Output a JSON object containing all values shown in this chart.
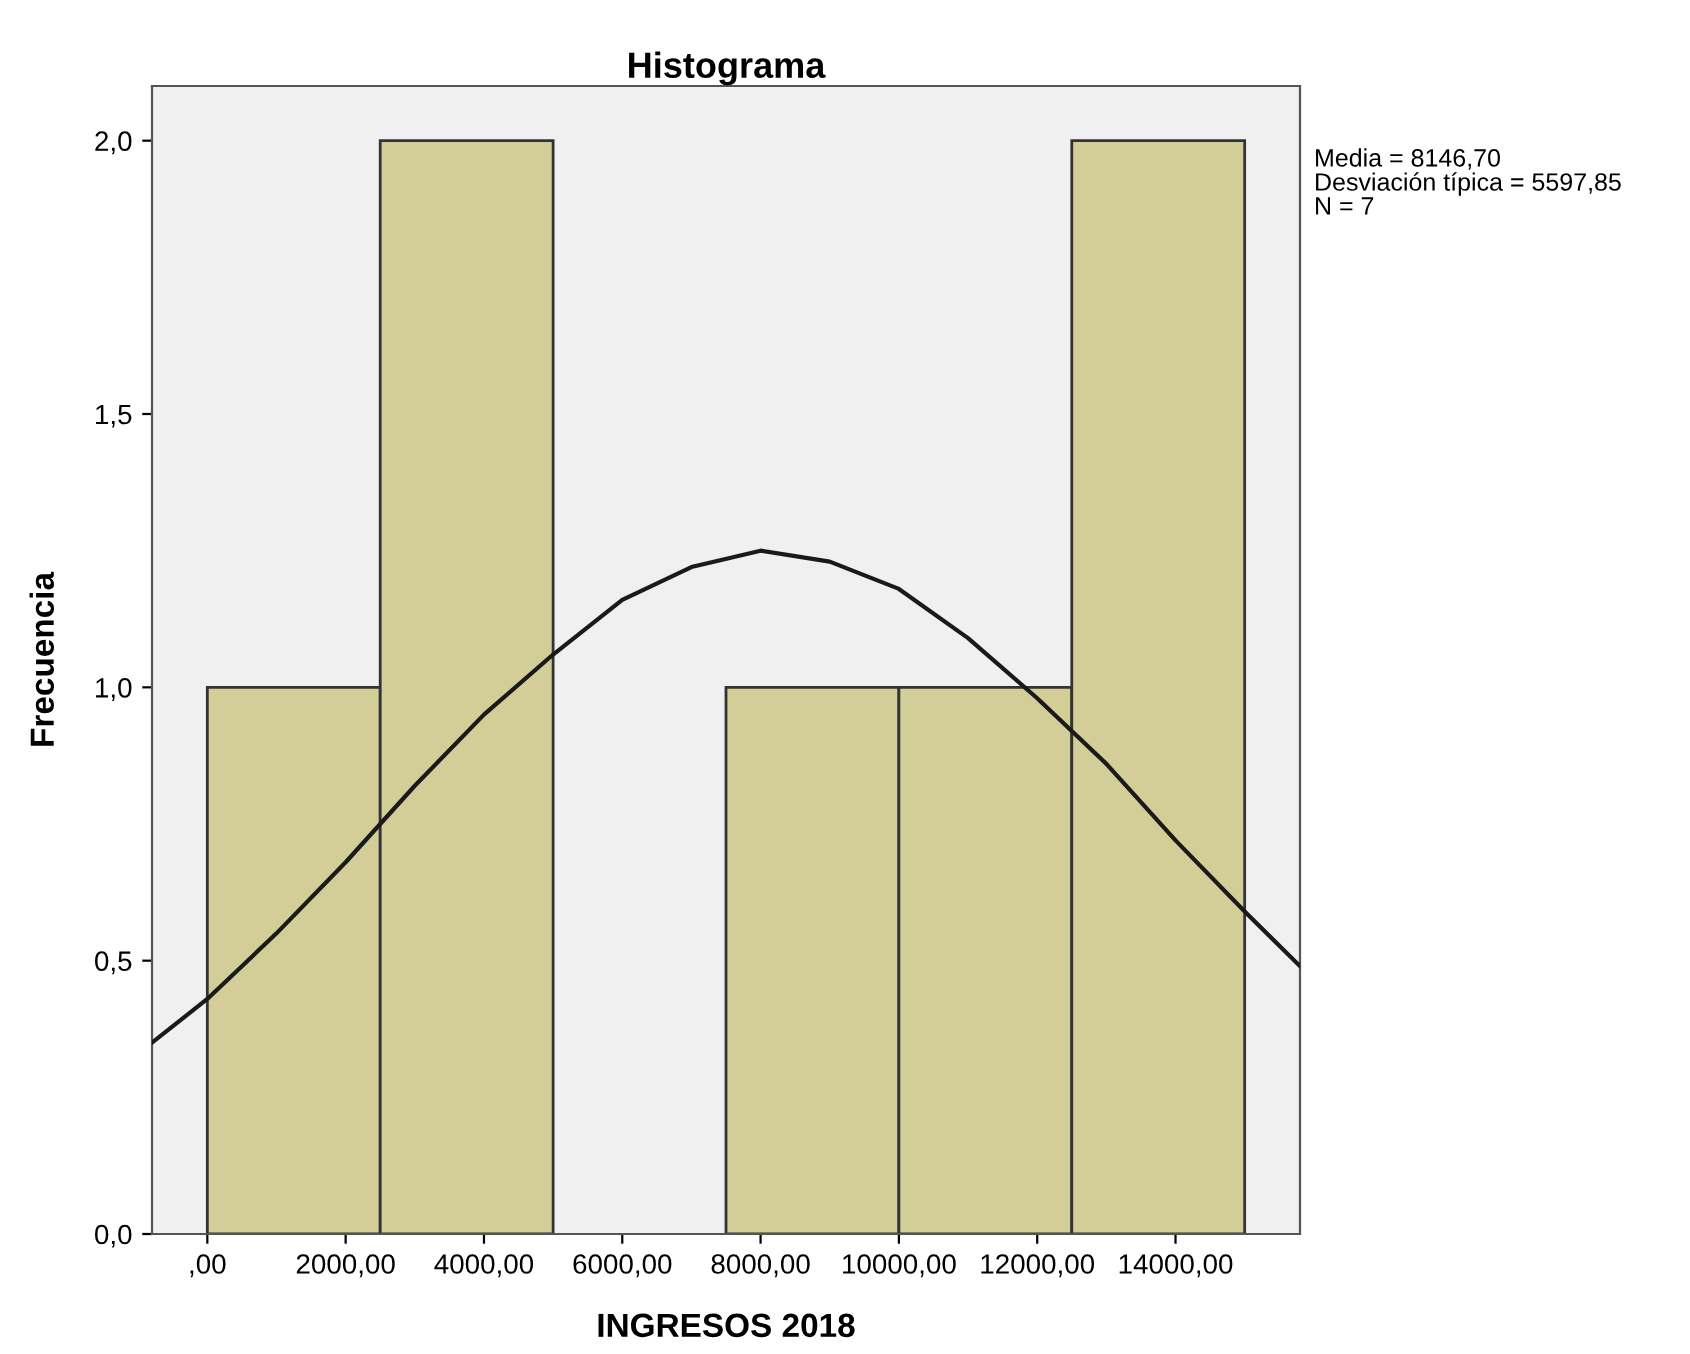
{
  "chart_data": {
    "type": "histogram",
    "title": "Histograma",
    "xlabel": "INGRESOS 2018",
    "ylabel": "Frecuencia",
    "bins": [
      0,
      2500,
      5000,
      7500,
      10000,
      12500,
      15000
    ],
    "values": [
      1,
      2,
      0,
      1,
      1,
      2
    ],
    "color": "#d3cd97",
    "series": [
      {
        "type": "line",
        "color": "#1a1a1a",
        "x": [
          -800,
          0,
          1000,
          2000,
          3000,
          4000,
          5000,
          6000,
          7000,
          8000,
          9000,
          10000,
          11000,
          12000,
          13000,
          14000,
          15000,
          15800
        ],
        "values": [
          0.35,
          0.43,
          0.55,
          0.68,
          0.82,
          0.95,
          1.06,
          1.16,
          1.22,
          1.25,
          1.23,
          1.18,
          1.09,
          0.98,
          0.86,
          0.72,
          0.59,
          0.49
        ]
      }
    ],
    "xlim": [
      -800,
      15800
    ],
    "xticks": [
      {
        "value": 0,
        "label": ",00"
      },
      {
        "value": 2000,
        "label": "2000,00"
      },
      {
        "value": 4000,
        "label": "4000,00"
      },
      {
        "value": 6000,
        "label": "6000,00"
      },
      {
        "value": 8000,
        "label": "8000,00"
      },
      {
        "value": 10000,
        "label": "10000,00"
      },
      {
        "value": 12000,
        "label": "12000,00"
      },
      {
        "value": 14000,
        "label": "14000,00"
      }
    ],
    "ylim": [
      0,
      2.1
    ],
    "yticks": [
      {
        "value": 0,
        "label": "0,0"
      },
      {
        "value": 0.5,
        "label": "0,5"
      },
      {
        "value": 1,
        "label": "1,0"
      },
      {
        "value": 1.5,
        "label": "1,5"
      },
      {
        "value": 2,
        "label": "2,0"
      }
    ],
    "annotations": [
      "Media = 8146,70",
      "Desviación típica = 5597,85",
      "N = 7"
    ],
    "grid": false,
    "legend": false
  }
}
